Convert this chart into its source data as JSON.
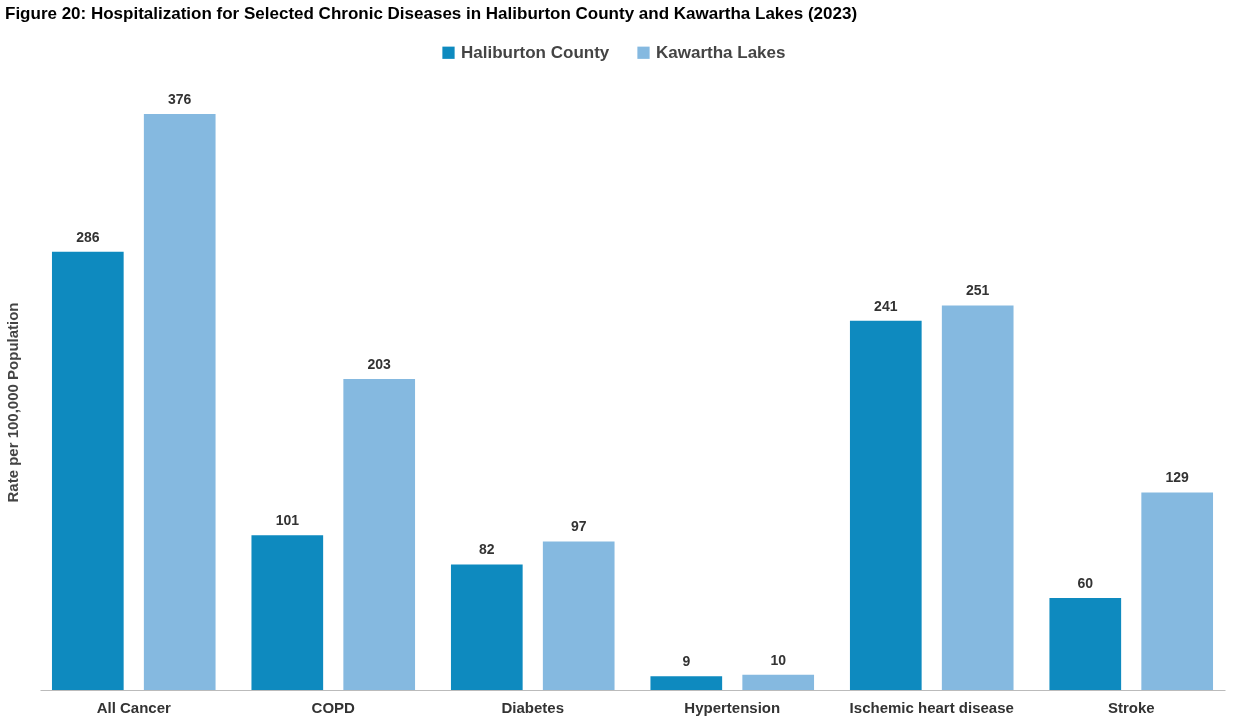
{
  "chart_data": {
    "type": "bar",
    "title": "Figure 20: Hospitalization for Selected Chronic Diseases in Haliburton County and Kawartha Lakes (2023)",
    "ylabel": "Rate per 100,000 Population",
    "categories": [
      "All Cancer",
      "COPD",
      "Diabetes",
      "Hypertension",
      "Ischemic heart disease",
      "Stroke"
    ],
    "series": [
      {
        "name": "Haliburton County",
        "color": "#0e8abf",
        "values": [
          286,
          101,
          82,
          9,
          241,
          60
        ]
      },
      {
        "name": "Kawartha Lakes",
        "color": "#85b9e0",
        "values": [
          376,
          203,
          97,
          10,
          251,
          129
        ]
      }
    ],
    "data_labels": true,
    "legend": "top",
    "grid": false
  }
}
